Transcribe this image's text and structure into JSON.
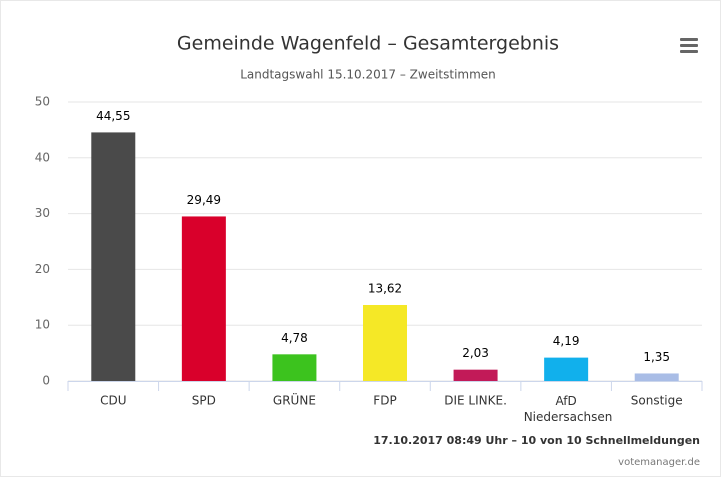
{
  "chart_data": {
    "type": "bar",
    "title": "Gemeinde Wagenfeld – Gesamtergebnis",
    "subtitle": "Landtagswahl 15.10.2017 – Zweitstimmen",
    "categories": [
      "CDU",
      "SPD",
      "GRÜNE",
      "FDP",
      "DIE LINKE.",
      "AfD Niedersachsen",
      "Sonstige"
    ],
    "values": [
      44.55,
      29.49,
      4.78,
      13.62,
      2.03,
      4.19,
      1.35
    ],
    "value_labels": [
      "44,55",
      "29,49",
      "4,78",
      "13,62",
      "2,03",
      "4,19",
      "1,35"
    ],
    "colors": [
      "#4a4a4a",
      "#d9002b",
      "#3cc31e",
      "#f5e826",
      "#c21a58",
      "#11b0ec",
      "#a9bde6"
    ],
    "ylim": [
      0,
      50
    ],
    "yticks": [
      0,
      10,
      20,
      30,
      40,
      50
    ],
    "grid": true,
    "credits": [
      "17.10.2017 08:49 Uhr – 10 von 10 Schnellmeldungen",
      "votemanager.de"
    ]
  }
}
